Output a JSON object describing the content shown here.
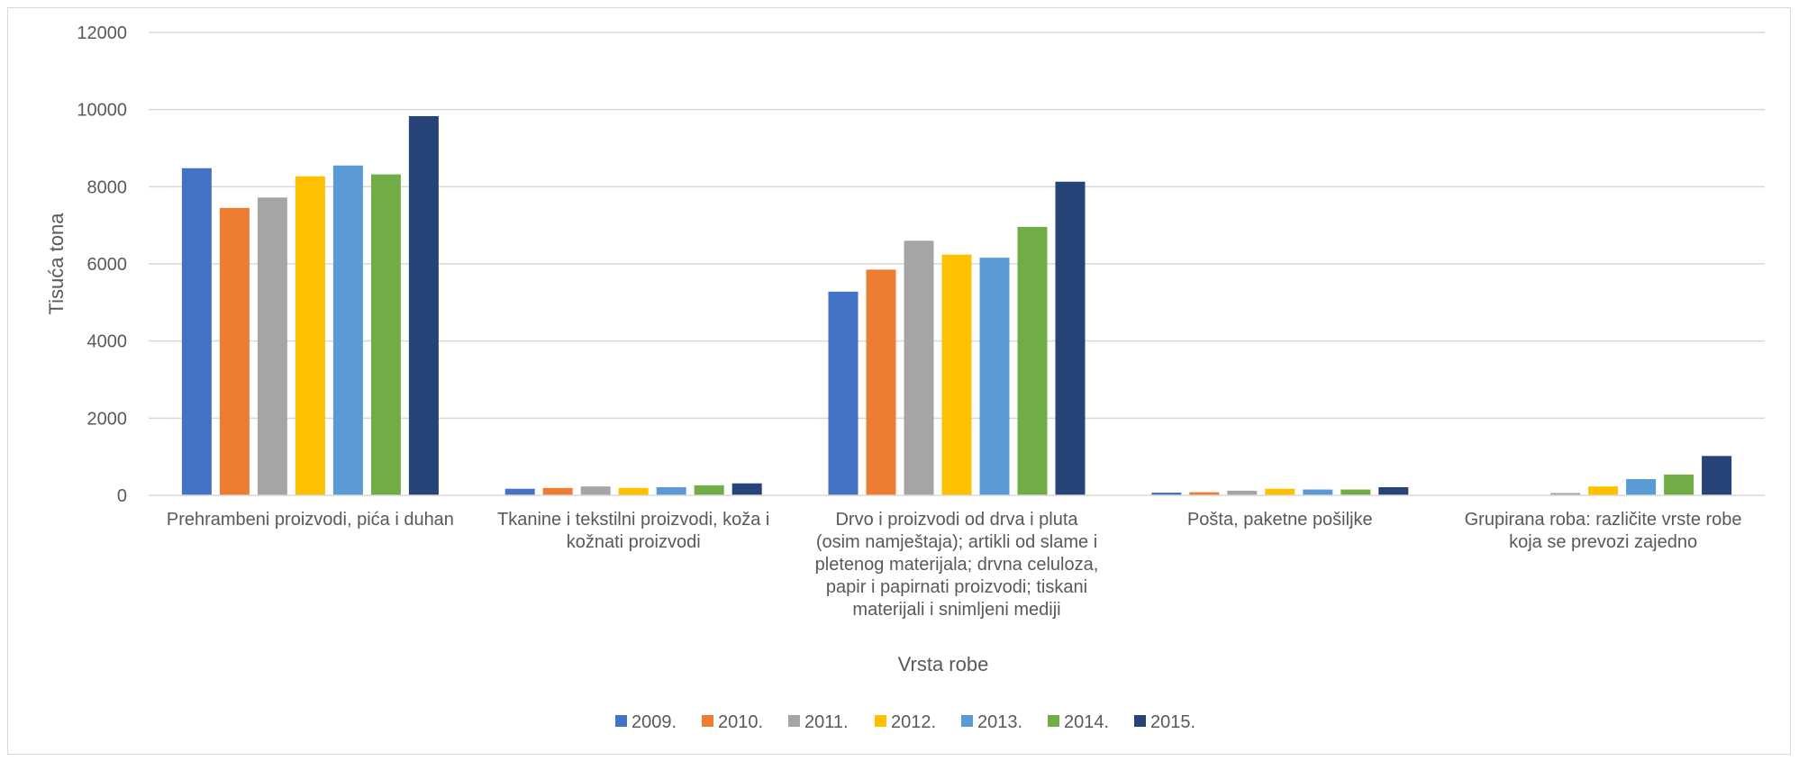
{
  "chart_data": {
    "type": "bar",
    "title": "",
    "xlabel": "Vrsta robe",
    "ylabel": "Tisuća tona",
    "ylim": [
      0,
      12000
    ],
    "yticks": [
      0,
      2000,
      4000,
      6000,
      8000,
      10000,
      12000
    ],
    "grid": true,
    "legend_position": "bottom",
    "categories": [
      [
        "Prehrambeni proizvodi, pića i duhan"
      ],
      [
        "Tkanine i tekstilni proizvodi, koža i",
        "kožnati proizvodi"
      ],
      [
        "Drvo i proizvodi od drva i pluta",
        "(osim namještaja); artikli od slame  i",
        "pletenog materijala; drvna celuloza,",
        "papir i papirnati proizvodi;  tiskani",
        "materijali i snimljeni mediji"
      ],
      [
        "Pošta, paketne pošiljke"
      ],
      [
        "Grupirana roba: različite vrste robe",
        "koja se prevozi zajedno"
      ]
    ],
    "series": [
      {
        "name": "2009.",
        "color": "#4472C4",
        "values": [
          8480,
          170,
          5280,
          70,
          0
        ]
      },
      {
        "name": "2010.",
        "color": "#ED7D31",
        "values": [
          7450,
          190,
          5850,
          80,
          0
        ]
      },
      {
        "name": "2011.",
        "color": "#A5A5A5",
        "values": [
          7720,
          230,
          6600,
          120,
          60
        ]
      },
      {
        "name": "2012.",
        "color": "#FFC000",
        "values": [
          8270,
          190,
          6240,
          170,
          230
        ]
      },
      {
        "name": "2013.",
        "color": "#5B9BD5",
        "values": [
          8550,
          210,
          6160,
          150,
          420
        ]
      },
      {
        "name": "2014.",
        "color": "#70AD47",
        "values": [
          8320,
          260,
          6960,
          150,
          540
        ]
      },
      {
        "name": "2015.",
        "color": "#264478",
        "values": [
          9830,
          310,
          8130,
          210,
          1020
        ]
      }
    ]
  }
}
